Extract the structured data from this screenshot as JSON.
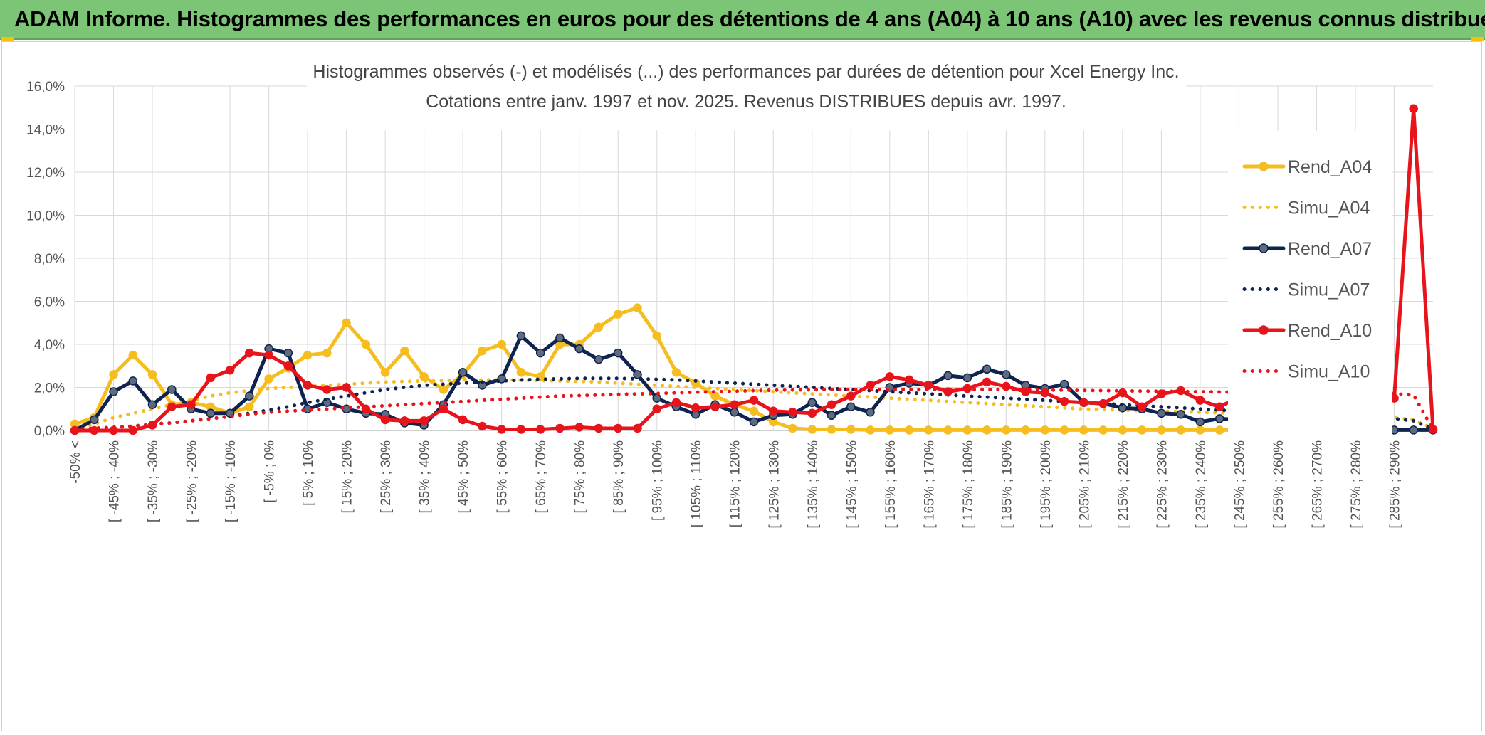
{
  "banner": {
    "title": "ADAM Informe. Histogrammes des performances en euros pour des détentions de 4 ans (A04) à 10 ans (A10) avec les revenus connus distribués",
    "color": "#7cc576"
  },
  "chart_data": {
    "type": "line",
    "title": "Histogrammes observés (-) et modélisés (...) des performances par durées de détention pour Xcel Energy Inc.",
    "subtitle": "Cotations entre janv. 1997 et nov. 2025. Revenus DISTRIBUES depuis avr. 1997.",
    "ylim": [
      0,
      16
    ],
    "yticks": [
      "0,0%",
      "2,0%",
      "4,0%",
      "6,0%",
      "8,0%",
      "10,0%",
      "12,0%",
      "14,0%",
      "16,0%"
    ],
    "grid": true,
    "legend_position": "top-right",
    "categories": [
      "-50% <",
      "[ -50% ; -45%",
      "[ -45% ; -40%",
      "[ -40% ; -35%",
      "[ -35% ; -30%",
      "[ -30% ; -25%",
      "[ -25% ; -20%",
      "[ -20% ; -15%",
      "[ -15% ; -10%",
      "[ -10% ; -5%",
      "[ -5% ; 0%",
      "[ 0% ; 5%",
      "[ 5% ; 10%",
      "[ 10% ; 15%",
      "[ 15% ; 20%",
      "[ 20% ; 25%",
      "[ 25% ; 30%",
      "[ 30% ; 35%",
      "[ 35% ; 40%",
      "[ 40% ; 45%",
      "[ 45% ; 50%",
      "[ 50% ; 55%",
      "[ 55% ; 60%",
      "[ 60% ; 65%",
      "[ 65% ; 70%",
      "[ 70% ; 75%",
      "[ 75% ; 80%",
      "[ 80% ; 85%",
      "[ 85% ; 90%",
      "[ 90% ; 95%",
      "[ 95% ; 100%",
      "[ 100% ; 105%",
      "[ 105% ; 110%",
      "[ 110% ; 115%",
      "[ 115% ; 120%",
      "[ 120% ; 125%",
      "[ 125% ; 130%",
      "[ 130% ; 135%",
      "[ 135% ; 140%",
      "[ 140% ; 145%",
      "[ 145% ; 150%",
      "[ 150% ; 155%",
      "[ 155% ; 160%",
      "[ 160% ; 165%",
      "[ 165% ; 170%",
      "[ 170% ; 175%",
      "[ 175% ; 180%",
      "[ 180% ; 185%",
      "[ 185% ; 190%",
      "[ 190% ; 195%",
      "[ 195% ; 200%",
      "[ 200% ; 205%",
      "[ 205% ; 210%",
      "[ 210% ; 215%",
      "[ 215% ; 220%",
      "[ 220% ; 225%",
      "[ 225% ; 230%",
      "[ 230% ; 235%",
      "[ 235% ; 240%",
      "[ 240% ; 245%",
      "[ 245% ; 250%",
      "[ 250% ; 255%",
      "[ 255% ; 260%",
      "[ 260% ; 265%",
      "[ 265% ; 270%",
      "[ 270% ; 275%",
      "[ 275% ; 280%",
      "[ 280% ; 285%",
      "[ 285% ; 290%",
      "[ 290% ; 295%",
      "[ 295% ; 300%"
    ],
    "shown_tick_labels": [
      "-50% <",
      "[ -45% ; -40%",
      "[ -35% ; -30%",
      "[ -25% ; -20%",
      "[ -15% ; -10%",
      "[ -5% ; 0%",
      "[ 5% ; 10%",
      "[ 15% ; 20%",
      "[ 25% ; 30%",
      "[ 35% ; 40%",
      "[ 45% ; 50%",
      "[ 55% ; 60%",
      "[ 65% ; 70%",
      "[ 75% ; 80%",
      "[ 85% ; 90%",
      "[ 95% ; 100%",
      "[ 105% ; 110%",
      "[ 115% ; 120%",
      "[ 125% ; 130%",
      "[ 135% ; 140%",
      "[ 145% ; 150%",
      "[ 155% ; 160%",
      "[ 165% ; 170%",
      "[ 175% ; 180%",
      "[ 185% ; 190%",
      "[ 195% ; 200%",
      "[ 205% ; 210%",
      "[ 215% ; 220%",
      "[ 225% ; 230%",
      "[ 235% ; 240%",
      "[ 245% ; 250%",
      "[ 255% ; 260%",
      "[ 265% ; 270%",
      "[ 275% ; 280%",
      "[ 285% ; 290%"
    ],
    "series": [
      {
        "name": "Rend_A04",
        "color": "#f5bd1f",
        "style": "solid",
        "markers": true,
        "values": [
          0.3,
          0.6,
          2.6,
          3.5,
          2.6,
          1.2,
          1.3,
          1.1,
          0.8,
          1.1,
          2.4,
          2.9,
          3.5,
          3.6,
          5.0,
          4.0,
          2.7,
          3.7,
          2.5,
          1.9,
          2.6,
          3.7,
          4.0,
          2.7,
          2.5,
          4.0,
          4.0,
          4.8,
          5.4,
          5.7,
          4.4,
          2.7,
          2.2,
          1.6,
          1.2,
          0.9,
          0.4,
          0.1,
          0.05,
          0.05,
          0.05,
          0.02,
          0.02,
          0.02,
          0.02,
          0.02,
          0.02,
          0.02,
          0.02,
          0.02,
          0.02,
          0.02,
          0.02,
          0.02,
          0.02,
          0.02,
          0.02,
          0.02,
          0.02,
          0.02,
          0.02,
          0.02,
          0.02,
          null,
          null,
          null,
          null,
          null,
          null,
          null,
          null
        ]
      },
      {
        "name": "Simu_A04",
        "color": "#f5bd1f",
        "style": "dotted",
        "markers": false,
        "values": [
          0.05,
          0.3,
          0.6,
          0.8,
          1.0,
          1.2,
          1.4,
          1.6,
          1.75,
          1.85,
          1.95,
          2.0,
          2.05,
          2.1,
          2.15,
          2.2,
          2.25,
          2.28,
          2.3,
          2.32,
          2.34,
          2.35,
          2.35,
          2.34,
          2.32,
          2.3,
          2.28,
          2.25,
          2.2,
          2.15,
          2.1,
          2.05,
          2.0,
          1.95,
          1.9,
          1.85,
          1.8,
          1.75,
          1.7,
          1.65,
          1.6,
          1.55,
          1.5,
          1.45,
          1.4,
          1.35,
          1.3,
          1.25,
          1.2,
          1.15,
          1.1,
          1.05,
          1.0,
          0.98,
          0.95,
          0.92,
          0.9,
          0.88,
          0.85,
          0.82,
          0.8,
          0.78,
          0.75,
          0.72,
          0.7,
          0.68,
          0.65,
          0.62,
          0.6,
          0.5,
          0.1
        ]
      },
      {
        "name": "Rend_A07",
        "color": "#0e2350",
        "style": "solid",
        "markers": true,
        "values": [
          0.0,
          0.5,
          1.8,
          2.3,
          1.2,
          1.9,
          1.0,
          0.8,
          0.8,
          1.6,
          3.8,
          3.6,
          1.0,
          1.3,
          1.0,
          0.8,
          0.75,
          0.35,
          0.25,
          1.2,
          2.7,
          2.1,
          2.4,
          4.4,
          3.6,
          4.3,
          3.8,
          3.3,
          3.6,
          2.6,
          1.5,
          1.1,
          0.75,
          1.2,
          0.85,
          0.4,
          0.7,
          0.75,
          1.3,
          0.7,
          1.1,
          0.85,
          2.0,
          2.2,
          2.1,
          2.55,
          2.45,
          2.85,
          2.6,
          2.1,
          1.95,
          2.15,
          1.3,
          1.25,
          1.05,
          1.0,
          0.8,
          0.75,
          0.4,
          0.55,
          0.5,
          0.15,
          0.1,
          0.05,
          0.02,
          0.02,
          0.02,
          0.02,
          0.02,
          0.02,
          0.02
        ]
      },
      {
        "name": "Simu_A07",
        "color": "#0e2350",
        "style": "dotted",
        "markers": false,
        "values": [
          0.02,
          0.1,
          0.15,
          0.2,
          0.3,
          0.35,
          0.45,
          0.55,
          0.65,
          0.8,
          0.95,
          1.1,
          1.3,
          1.45,
          1.6,
          1.75,
          1.9,
          2.0,
          2.1,
          2.15,
          2.2,
          2.25,
          2.3,
          2.35,
          2.38,
          2.4,
          2.42,
          2.42,
          2.42,
          2.4,
          2.38,
          2.35,
          2.3,
          2.25,
          2.2,
          2.15,
          2.1,
          2.05,
          2.0,
          1.95,
          1.9,
          1.85,
          1.8,
          1.75,
          1.7,
          1.65,
          1.6,
          1.55,
          1.5,
          1.45,
          1.4,
          1.35,
          1.3,
          1.25,
          1.2,
          1.15,
          1.1,
          1.05,
          1.0,
          0.95,
          0.9,
          0.85,
          0.8,
          0.78,
          0.75,
          0.7,
          0.65,
          0.6,
          0.55,
          0.45,
          0.05
        ]
      },
      {
        "name": "Rend_A10",
        "color": "#e8141c",
        "style": "solid",
        "markers": true,
        "values": [
          0.0,
          0.0,
          0.0,
          0.0,
          0.25,
          1.1,
          1.2,
          2.45,
          2.8,
          3.6,
          3.5,
          3.0,
          2.1,
          1.9,
          2.0,
          1.0,
          0.5,
          0.45,
          0.45,
          1.0,
          0.5,
          0.2,
          0.05,
          0.05,
          0.05,
          0.1,
          0.15,
          0.1,
          0.1,
          0.1,
          1.0,
          1.3,
          1.05,
          1.1,
          1.2,
          1.4,
          0.9,
          0.85,
          0.8,
          1.2,
          1.6,
          2.1,
          2.5,
          2.35,
          2.1,
          1.8,
          1.95,
          2.25,
          2.05,
          1.8,
          1.75,
          1.35,
          1.3,
          1.25,
          1.75,
          1.1,
          1.7,
          1.85,
          1.4,
          1.1,
          1.55,
          1.75,
          1.35,
          1.15,
          1.1,
          1.35,
          0.95,
          0.85,
          1.5,
          14.95,
          0.05
        ]
      },
      {
        "name": "Simu_A10",
        "color": "#e8141c",
        "style": "dotted",
        "markers": false,
        "values": [
          0.05,
          0.1,
          0.15,
          0.2,
          0.3,
          0.35,
          0.45,
          0.55,
          0.65,
          0.75,
          0.85,
          0.9,
          0.95,
          1.0,
          1.05,
          1.1,
          1.15,
          1.2,
          1.25,
          1.3,
          1.35,
          1.4,
          1.45,
          1.5,
          1.55,
          1.6,
          1.62,
          1.65,
          1.68,
          1.7,
          1.72,
          1.75,
          1.78,
          1.8,
          1.82,
          1.85,
          1.87,
          1.88,
          1.89,
          1.9,
          1.9,
          1.9,
          1.9,
          1.9,
          1.9,
          1.9,
          1.9,
          1.9,
          1.9,
          1.89,
          1.88,
          1.87,
          1.86,
          1.85,
          1.84,
          1.83,
          1.82,
          1.81,
          1.8,
          1.79,
          1.78,
          1.77,
          1.76,
          1.75,
          1.74,
          1.73,
          1.72,
          1.71,
          1.7,
          1.65,
          0.05
        ]
      }
    ]
  }
}
